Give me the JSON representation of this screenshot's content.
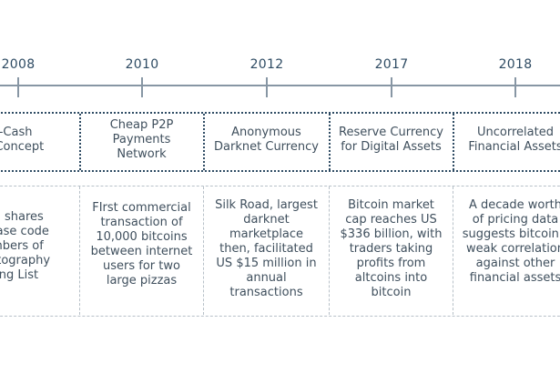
{
  "years": [
    "2008",
    "2010",
    "2012",
    "2017",
    "2018"
  ],
  "phases": [
    [
      "E-Cash",
      "of Concept"
    ],
    [
      "Cheap P2P",
      "Payments",
      "Network"
    ],
    [
      "Anonymous",
      "Darknet Currency"
    ],
    [
      "Reserve Currency",
      "for Digital Assets"
    ],
    [
      "Uncorrelated",
      "Financial Assets"
    ]
  ],
  "details": [
    [
      "shi shares",
      "elease code",
      "embers of",
      "ryptography",
      "iling List"
    ],
    [
      "FIrst commercial",
      "transaction of",
      "10,000 bitcoins",
      "between internet",
      "users for two",
      "large pizzas"
    ],
    [
      "Silk Road, largest",
      "darknet",
      "marketplace",
      "then, facilitated",
      "US $15 million in",
      "annual",
      "transactions"
    ],
    [
      "Bitcoin market",
      "cap reaches US",
      "$336 billion, with",
      "traders taking",
      "profits from",
      "altcoins into",
      "bitcoin"
    ],
    [
      "A decade worth",
      "of pricing data",
      "suggests bitcoin's",
      "weak correlation",
      "against other",
      "financial assets"
    ]
  ]
}
